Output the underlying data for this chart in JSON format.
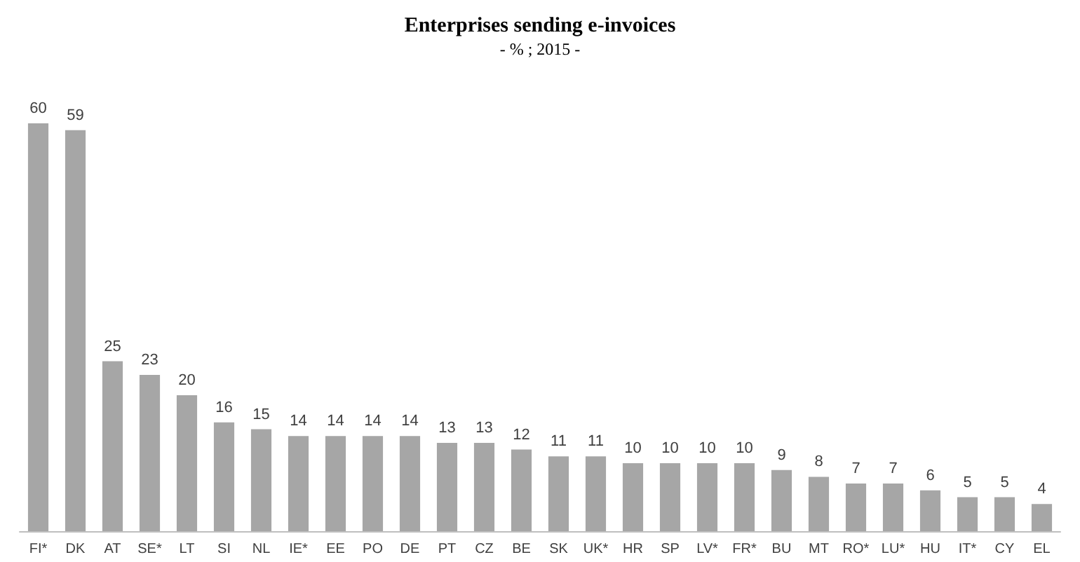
{
  "chart_data": {
    "type": "bar",
    "title": "Enterprises sending e-invoices",
    "subtitle": "- % ; 2015 -",
    "categories": [
      "FI*",
      "DK",
      "AT",
      "SE*",
      "LT",
      "SI",
      "NL",
      "IE*",
      "EE",
      "PO",
      "DE",
      "PT",
      "CZ",
      "BE",
      "SK",
      "UK*",
      "HR",
      "SP",
      "LV*",
      "FR*",
      "BU",
      "MT",
      "RO*",
      "LU*",
      "HU",
      "IT*",
      "CY",
      "EL"
    ],
    "values": [
      60,
      59,
      25,
      23,
      20,
      16,
      15,
      14,
      14,
      14,
      14,
      13,
      13,
      12,
      11,
      11,
      10,
      10,
      10,
      10,
      9,
      8,
      7,
      7,
      6,
      5,
      5,
      4
    ],
    "color": "#a6a6a6",
    "data_labels": true
  }
}
